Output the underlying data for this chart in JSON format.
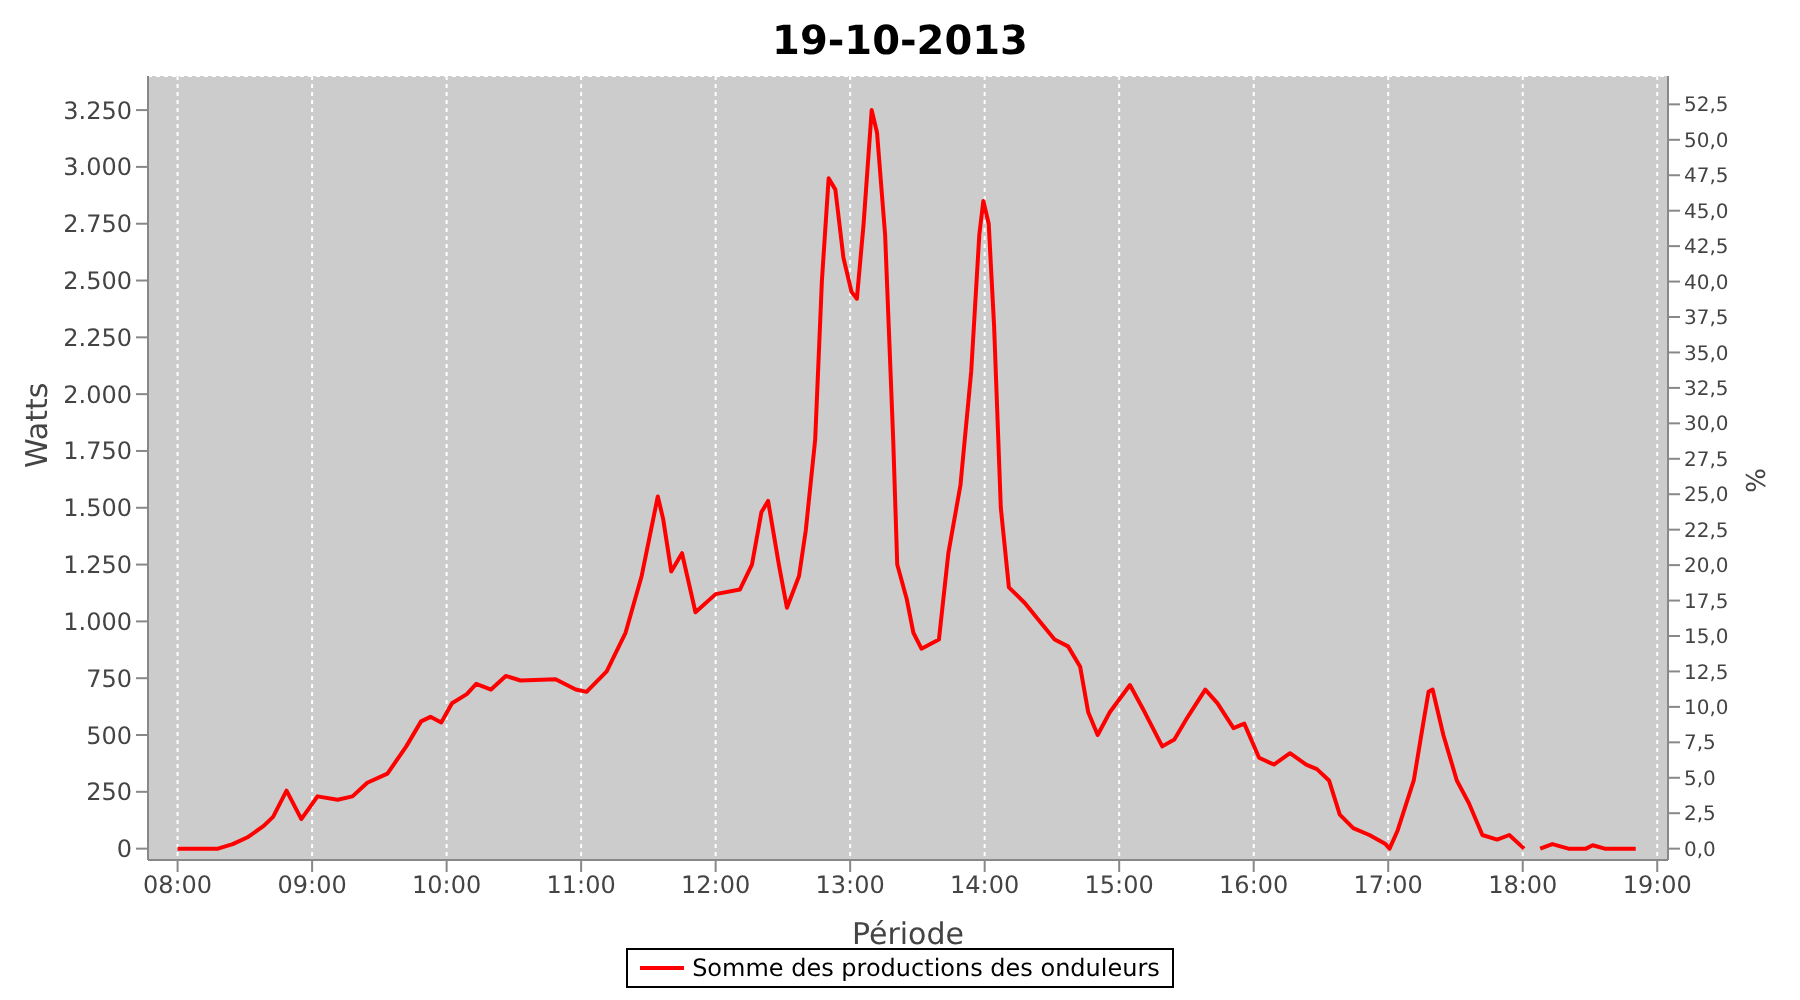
{
  "chart_data": {
    "type": "line",
    "title": "19-10-2013",
    "xlabel": "Période",
    "ylabel": "Watts",
    "y2label": "%",
    "x": [
      8.0,
      8.3,
      8.41,
      8.52,
      8.64,
      8.71,
      8.81,
      8.92,
      9.04,
      9.19,
      9.3,
      9.41,
      9.56,
      9.7,
      9.81,
      9.88,
      9.96,
      10.04,
      10.15,
      10.22,
      10.33,
      10.44,
      10.55,
      10.81,
      10.96,
      11.04,
      11.19,
      11.33,
      11.45,
      11.57,
      11.61,
      11.67,
      11.75,
      11.85,
      12.0,
      12.18,
      12.27,
      12.34,
      12.39,
      12.47,
      12.53,
      12.62,
      12.67,
      12.74,
      12.79,
      12.84,
      12.89,
      12.95,
      13.01,
      13.05,
      13.1,
      13.16,
      13.2,
      13.26,
      13.32,
      13.35,
      13.42,
      13.47,
      13.53,
      13.66,
      13.73,
      13.82,
      13.9,
      13.96,
      13.99,
      14.03,
      14.07,
      14.12,
      14.18,
      14.3,
      14.41,
      14.52,
      14.62,
      14.71,
      14.77,
      14.84,
      14.93,
      15.08,
      15.19,
      15.32,
      15.41,
      15.51,
      15.64,
      15.73,
      15.85,
      15.93,
      16.04,
      16.15,
      16.27,
      16.39,
      16.47,
      16.56,
      16.64,
      16.74,
      16.86,
      16.98,
      17.01,
      17.07,
      17.19,
      17.26,
      17.3,
      17.33,
      17.41,
      17.51,
      17.6,
      17.7,
      17.81,
      17.9,
      18.01,
      18.07,
      18.13,
      18.22,
      18.34,
      18.47,
      18.52,
      18.61,
      18.84
    ],
    "series": [
      {
        "name": "Somme des productions des onduleurs",
        "color": "#ff0000",
        "values": [
          0,
          0,
          20,
          50,
          100,
          140,
          255,
          130,
          230,
          215,
          230,
          290,
          330,
          450,
          560,
          580,
          555,
          640,
          680,
          725,
          700,
          760,
          740,
          745,
          700,
          690,
          780,
          950,
          1200,
          1550,
          1450,
          1220,
          1300,
          1040,
          1120,
          1140,
          1250,
          1480,
          1530,
          1250,
          1060,
          1200,
          1400,
          1800,
          2500,
          2950,
          2900,
          2600,
          2450,
          2420,
          2750,
          3250,
          3150,
          2700,
          1800,
          1250,
          1100,
          950,
          880,
          920,
          1300,
          1600,
          2100,
          2700,
          2850,
          2750,
          2300,
          1500,
          1150,
          1080,
          1000,
          920,
          890,
          800,
          600,
          500,
          600,
          720,
          600,
          450,
          480,
          580,
          700,
          640,
          530,
          550,
          400,
          370,
          420,
          370,
          350,
          300,
          150,
          90,
          60,
          20,
          0,
          80,
          300,
          550,
          690,
          700,
          500,
          300,
          200,
          60,
          40,
          60,
          0,
          null,
          0,
          20,
          0,
          0,
          15,
          0,
          0
        ]
      }
    ],
    "xlim": [
      7.78,
      19.08
    ],
    "xticks": [
      {
        "value": 8,
        "label": "08:00"
      },
      {
        "value": 9,
        "label": "09:00"
      },
      {
        "value": 10,
        "label": "10:00"
      },
      {
        "value": 11,
        "label": "11:00"
      },
      {
        "value": 12,
        "label": "12:00"
      },
      {
        "value": 13,
        "label": "13:00"
      },
      {
        "value": 14,
        "label": "14:00"
      },
      {
        "value": 15,
        "label": "15:00"
      },
      {
        "value": 16,
        "label": "16:00"
      },
      {
        "value": 17,
        "label": "17:00"
      },
      {
        "value": 18,
        "label": "18:00"
      },
      {
        "value": 19,
        "label": "19:00"
      }
    ],
    "ylim": [
      -50,
      3400
    ],
    "yticks": [
      0,
      250,
      500,
      750,
      {
        "value": 1000,
        "label": "1.000"
      },
      {
        "value": 1250,
        "label": "1.250"
      },
      {
        "value": 1500,
        "label": "1.500"
      },
      {
        "value": 1750,
        "label": "1.750"
      },
      {
        "value": 2000,
        "label": "2.000"
      },
      {
        "value": 2250,
        "label": "2.250"
      },
      {
        "value": 2500,
        "label": "2.500"
      },
      {
        "value": 2750,
        "label": "2.750"
      },
      {
        "value": 3000,
        "label": "3.000"
      },
      {
        "value": 3250,
        "label": "3.250"
      }
    ],
    "y2lim": [
      -0.8,
      54.5
    ],
    "y2ticks": [
      {
        "value": 0,
        "label": "0,0"
      },
      {
        "value": 2.5,
        "label": "2,5"
      },
      {
        "value": 5,
        "label": "5,0"
      },
      {
        "value": 7.5,
        "label": "7,5"
      },
      {
        "value": 10,
        "label": "10,0"
      },
      {
        "value": 12.5,
        "label": "12,5"
      },
      {
        "value": 15,
        "label": "15,0"
      },
      {
        "value": 17.5,
        "label": "17,5"
      },
      {
        "value": 20,
        "label": "20,0"
      },
      {
        "value": 22.5,
        "label": "22,5"
      },
      {
        "value": 25,
        "label": "25,0"
      },
      {
        "value": 27.5,
        "label": "27,5"
      },
      {
        "value": 30,
        "label": "30,0"
      },
      {
        "value": 32.5,
        "label": "32,5"
      },
      {
        "value": 35,
        "label": "35,0"
      },
      {
        "value": 37.5,
        "label": "37,5"
      },
      {
        "value": 40,
        "label": "40,0"
      },
      {
        "value": 42.5,
        "label": "42,5"
      },
      {
        "value": 45,
        "label": "45,0"
      },
      {
        "value": 47.5,
        "label": "47,5"
      },
      {
        "value": 50,
        "label": "50,0"
      },
      {
        "value": 52.5,
        "label": "52,5"
      }
    ],
    "grid": true,
    "legend": "bottom",
    "marker": "none",
    "line_style": "solid"
  }
}
